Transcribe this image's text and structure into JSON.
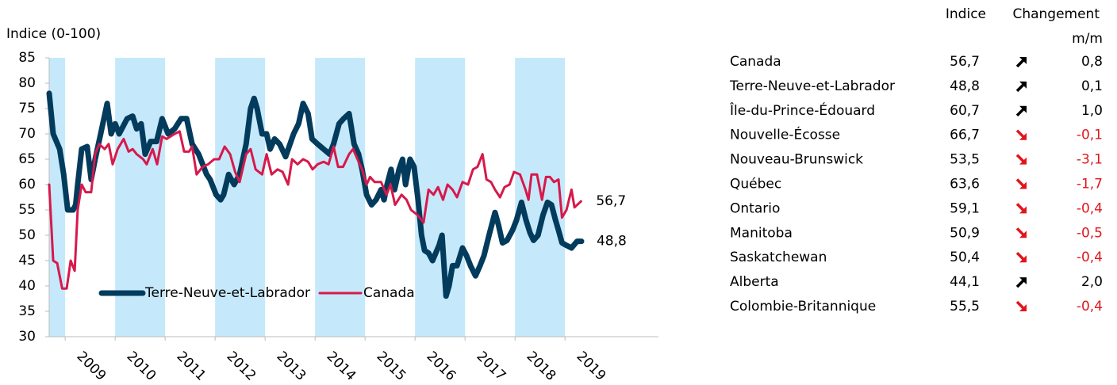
{
  "chart_data": {
    "type": "line",
    "y_label": "Indice (0-100)",
    "xlim": [
      2008.68,
      2020.87
    ],
    "xticks": [
      2009,
      2010,
      2011,
      2012,
      2013,
      2014,
      2015,
      2016,
      2017,
      2018,
      2019
    ],
    "ylim": [
      30,
      85
    ],
    "yticks": [
      30,
      35,
      40,
      45,
      50,
      55,
      60,
      65,
      70,
      75,
      80,
      85
    ],
    "grid": false,
    "legend": "lower left",
    "shade_color": "#c5e9fb",
    "series": [
      {
        "name": "Terre-Neuve-et-Labrador",
        "color": "#033b5c",
        "x": [
          2008.68,
          2008.76,
          2008.89,
          2008.97,
          2009.05,
          2009.16,
          2009.21,
          2009.25,
          2009.33,
          2009.44,
          2009.52,
          2009.6,
          2009.71,
          2009.84,
          2009.92,
          2010,
          2010.08,
          2010.24,
          2010.35,
          2010.43,
          2010.52,
          2010.6,
          2010.71,
          2010.83,
          2010.94,
          2011.06,
          2011.19,
          2011.32,
          2011.43,
          2011.54,
          2011.67,
          2011.83,
          2011.9,
          2012.02,
          2012.11,
          2012.17,
          2012.27,
          2012.38,
          2012.49,
          2012.62,
          2012.71,
          2012.78,
          2012.84,
          2012.94,
          2013.03,
          2013.1,
          2013.19,
          2013.29,
          2013.41,
          2013.57,
          2013.67,
          2013.76,
          2013.86,
          2013.94,
          2014.05,
          2014.17,
          2014.29,
          2014.37,
          2014.48,
          2014.57,
          2014.68,
          2014.78,
          2014.87,
          2014.94,
          2015.03,
          2015.13,
          2015.22,
          2015.32,
          2015.38,
          2015.44,
          2015.52,
          2015.59,
          2015.68,
          2015.75,
          2015.81,
          2015.9,
          2015.98,
          2016.06,
          2016.13,
          2016.19,
          2016.27,
          2016.35,
          2016.48,
          2016.54,
          2016.62,
          2016.68,
          2016.75,
          2016.84,
          2016.95,
          2017.03,
          2017.11,
          2017.21,
          2017.3,
          2017.38,
          2017.48,
          2017.6,
          2017.67,
          2017.75,
          2017.84,
          2017.95,
          2018.03,
          2018.13,
          2018.22,
          2018.3,
          2018.37,
          2018.46,
          2018.56,
          2018.65,
          2018.73,
          2018.81,
          2018.87,
          2018.94,
          2019.03,
          2019.13,
          2019.24,
          2019.33
        ],
        "values": [
          78,
          70,
          67,
          62,
          55,
          55,
          56,
          60,
          67,
          67.5,
          61,
          65,
          70,
          76,
          70,
          72,
          70,
          73,
          73.5,
          71,
          72,
          66,
          68.5,
          68.5,
          73,
          70,
          71,
          73,
          73,
          68,
          66,
          62,
          61,
          58,
          57,
          58,
          62,
          60,
          62,
          68,
          75,
          77,
          75,
          70,
          70,
          67,
          69,
          68,
          65.5,
          70,
          72,
          76,
          74,
          69,
          68,
          67,
          66,
          68,
          72,
          73,
          74,
          68,
          66,
          63,
          58,
          56,
          57,
          59,
          57,
          60,
          63,
          59,
          63,
          65,
          60,
          65,
          63.5,
          57,
          50,
          47,
          46.5,
          45,
          48,
          50,
          38,
          40,
          44,
          44,
          47.5,
          46,
          44,
          42,
          44,
          46,
          50,
          54.5,
          52,
          48.5,
          49,
          51,
          53,
          56.5,
          53,
          50.5,
          49,
          50,
          54,
          56.5,
          56,
          53,
          51,
          48.5,
          48,
          47.5,
          48.8,
          48.8
        ],
        "value_labels": {
          "115": "48,8"
        }
      },
      {
        "name": "Canada",
        "color": "#d7194b",
        "x": [
          2008.68,
          2008.76,
          2008.84,
          2008.94,
          2009.03,
          2009.11,
          2009.19,
          2009.25,
          2009.33,
          2009.41,
          2009.52,
          2009.6,
          2009.68,
          2009.79,
          2009.87,
          2009.95,
          2010.05,
          2010.17,
          2010.27,
          2010.35,
          2010.43,
          2010.56,
          2010.63,
          2010.75,
          2010.84,
          2010.94,
          2011.03,
          2011.19,
          2011.29,
          2011.38,
          2011.48,
          2011.54,
          2011.63,
          2011.75,
          2011.86,
          2011.98,
          2012.08,
          2012.19,
          2012.3,
          2012.4,
          2012.49,
          2012.62,
          2012.71,
          2012.81,
          2012.94,
          2013.03,
          2013.13,
          2013.25,
          2013.35,
          2013.46,
          2013.54,
          2013.65,
          2013.76,
          2013.86,
          2013.95,
          2014.05,
          2014.17,
          2014.27,
          2014.37,
          2014.46,
          2014.56,
          2014.68,
          2014.76,
          2014.87,
          2014.94,
          2015.03,
          2015.1,
          2015.19,
          2015.32,
          2015.43,
          2015.51,
          2015.6,
          2015.73,
          2015.83,
          2015.92,
          2016.05,
          2016.17,
          2016.27,
          2016.37,
          2016.46,
          2016.56,
          2016.65,
          2016.75,
          2016.84,
          2016.95,
          2017.06,
          2017.16,
          2017.25,
          2017.35,
          2017.43,
          2017.52,
          2017.6,
          2017.7,
          2017.79,
          2017.89,
          2017.98,
          2018.1,
          2018.21,
          2018.27,
          2018.33,
          2018.44,
          2018.54,
          2018.62,
          2018.7,
          2018.78,
          2018.87,
          2018.94,
          2019.03,
          2019.13,
          2019.19,
          2019.32
        ],
        "values": [
          60,
          45,
          44.5,
          39.5,
          39.5,
          45,
          43,
          55,
          60,
          58.5,
          58.5,
          66,
          68,
          67,
          68,
          64,
          67,
          69,
          66.5,
          67,
          66,
          65,
          64,
          67,
          64,
          69.5,
          69,
          70,
          70.5,
          66.5,
          66.5,
          67.5,
          62,
          63.5,
          64,
          65,
          65,
          67.5,
          66,
          62.5,
          60.5,
          66,
          67,
          63,
          62,
          66,
          62,
          63,
          62.5,
          60,
          65,
          64,
          65,
          64.5,
          63,
          64,
          64.5,
          64,
          67.5,
          63.5,
          63.5,
          66,
          67,
          64.5,
          63,
          60,
          61.5,
          60.5,
          60.5,
          58,
          60,
          56,
          58,
          57,
          55,
          54,
          52.5,
          59,
          58,
          59.5,
          57,
          60,
          59,
          57.5,
          60.5,
          60,
          63,
          63.5,
          66,
          61,
          60.5,
          59,
          57.5,
          59.5,
          60,
          62.5,
          62,
          59,
          57,
          62,
          62,
          57,
          61.5,
          61.5,
          60.5,
          61,
          53.5,
          55,
          59,
          55.5,
          56.7
        ],
        "value_labels": {
          "110": "56,7"
        }
      }
    ]
  },
  "table": {
    "header": {
      "index": "Indice",
      "change": "Changement",
      "change_unit": "m/m"
    },
    "rows": [
      [
        "Canada",
        "56,7",
        "0,8"
      ],
      [
        "Terre-Neuve-et-Labrador",
        "48,8",
        "0,1"
      ],
      [
        "Île-du-Prince-Édouard",
        "60,7",
        "1,0"
      ],
      [
        "Nouvelle-Écosse",
        "66,7",
        "-0,1"
      ],
      [
        "Nouveau-Brunswick",
        "53,5",
        "-3,1"
      ],
      [
        "Québec",
        "63,6",
        "-1,7"
      ],
      [
        "Ontario",
        "59,1",
        "-0,4"
      ],
      [
        "Manitoba",
        "50,9",
        "-0,5"
      ],
      [
        "Saskatchewan",
        "50,4",
        "-0,4"
      ],
      [
        "Alberta",
        "44,1",
        "2,0"
      ],
      [
        "Colombie-Britannique",
        "55,5",
        "-0,4"
      ]
    ]
  }
}
